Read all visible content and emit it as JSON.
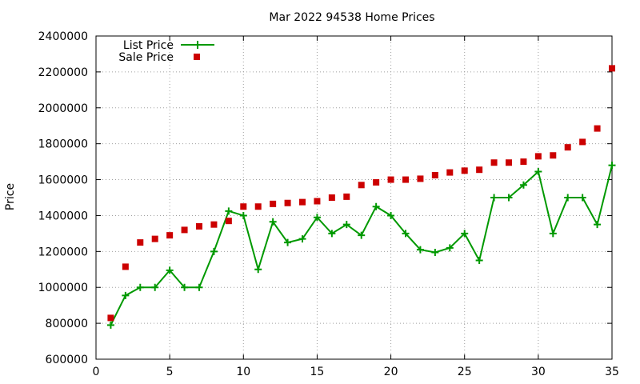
{
  "chart_data": {
    "type": "line",
    "title": "Mar 2022 94538 Home Prices",
    "xlabel": "",
    "ylabel": "Price",
    "xlim": [
      0,
      35
    ],
    "ylim": [
      600000,
      2400000
    ],
    "x_ticks": [
      "0",
      "5",
      "10",
      "15",
      "20",
      "25",
      "30",
      "35"
    ],
    "y_ticks": [
      "600000",
      "800000",
      "1000000",
      "1200000",
      "1400000",
      "1600000",
      "1800000",
      "2000000",
      "2200000",
      "2400000"
    ],
    "grid": true,
    "legend_position": "top-left",
    "x": [
      1,
      2,
      3,
      4,
      5,
      6,
      7,
      8,
      9,
      10,
      11,
      12,
      13,
      14,
      15,
      16,
      17,
      18,
      19,
      20,
      21,
      22,
      23,
      24,
      25,
      26,
      27,
      28,
      29,
      30,
      31,
      32,
      33,
      34,
      35
    ],
    "series": [
      {
        "name": "List Price",
        "style": "linespoints",
        "color": "#009900",
        "values": [
          790000,
          955000,
          1000000,
          1000000,
          1095000,
          1000000,
          1000000,
          1200000,
          1425000,
          1400000,
          1100000,
          1365000,
          1250000,
          1270000,
          1390000,
          1300000,
          1350000,
          1290000,
          1450000,
          1400000,
          1300000,
          1210000,
          1195000,
          1220000,
          1300000,
          1150000,
          1500000,
          1500000,
          1570000,
          1645000,
          1300000,
          1500000,
          1500000,
          1350000,
          1680000
        ]
      },
      {
        "name": "Sale Price",
        "style": "points",
        "color": "#cc0000",
        "values": [
          830000,
          1115000,
          1250000,
          1270000,
          1290000,
          1320000,
          1340000,
          1350000,
          1370000,
          1450000,
          1450000,
          1465000,
          1470000,
          1475000,
          1480000,
          1500000,
          1505000,
          1570000,
          1585000,
          1600000,
          1600000,
          1605000,
          1625000,
          1640000,
          1650000,
          1655000,
          1695000,
          1695000,
          1700000,
          1730000,
          1735000,
          1780000,
          1810000,
          1885000,
          2220000
        ]
      }
    ]
  }
}
